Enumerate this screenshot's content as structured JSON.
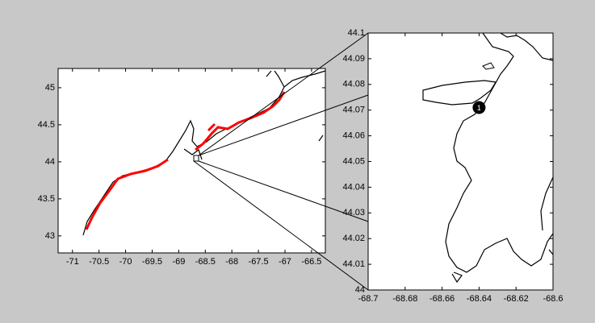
{
  "chart_data": [
    {
      "type": "map",
      "xlim": [
        -71.27,
        -66.24
      ],
      "ylim": [
        42.77,
        45.26
      ],
      "xticks": [
        -71,
        -70.5,
        -70,
        -69.5,
        -69,
        -68.5,
        -68,
        -67.5,
        -67,
        -66.5
      ],
      "yticks": [
        43,
        43.5,
        44,
        44.5,
        45
      ]
    },
    {
      "type": "map",
      "xlim": [
        -68.7,
        -68.6
      ],
      "ylim": [
        44,
        44.1
      ],
      "xticks": [
        -68.7,
        -68.68,
        -68.66,
        -68.64,
        -68.62,
        -68.6
      ],
      "yticks": [
        44,
        44.01,
        44.02,
        44.03,
        44.04,
        44.05,
        44.06,
        44.07,
        44.08,
        44.09,
        44.1
      ],
      "points": [
        {
          "label": "1",
          "x": -68.64,
          "y": 44.071
        }
      ]
    }
  ]
}
